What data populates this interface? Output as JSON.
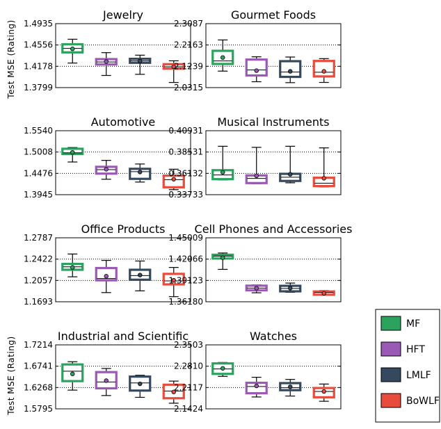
{
  "figure": {
    "ylabel": "Test MSE (Rating)"
  },
  "legend": [
    {
      "name": "MF",
      "color": "#2ca25f"
    },
    {
      "name": "HFT",
      "color": "#9b59b6"
    },
    {
      "name": "LMLF",
      "color": "#34495e"
    },
    {
      "name": "BoWLF",
      "color": "#e74c3c"
    }
  ],
  "chart_data": [
    {
      "type": "box",
      "title": "Jewelry",
      "ylim": [
        1.3799,
        1.4935
      ],
      "yticks": [
        "1.4935",
        "1.4556",
        "1.4178",
        "1.3799"
      ],
      "boxes": [
        {
          "name": "MF",
          "whisker_low": 1.4235,
          "q1": 1.4425,
          "median": 1.4495,
          "q3": 1.4568,
          "whisker_high": 1.4658,
          "mean": 1.4488
        },
        {
          "name": "HFT",
          "whisker_low": 1.4015,
          "q1": 1.421,
          "median": 1.4255,
          "q3": 1.4305,
          "whisker_high": 1.442,
          "mean": 1.4262
        },
        {
          "name": "LMLF",
          "whisker_low": 1.4035,
          "q1": 1.424,
          "median": 1.4275,
          "q3": 1.431,
          "whisker_high": 1.4375,
          "mean": 1.427
        },
        {
          "name": "BoWLF",
          "whisker_low": 1.389,
          "q1": 1.4135,
          "median": 1.417,
          "q3": 1.4215,
          "whisker_high": 1.4275,
          "mean": 1.417
        }
      ]
    },
    {
      "type": "box",
      "title": "Gourmet Foods",
      "ylim": [
        2.0315,
        2.3087
      ],
      "yticks": [
        "2.3087",
        "2.2163",
        "2.1239",
        "2.0315"
      ],
      "boxes": [
        {
          "name": "MF",
          "whisker_low": 2.103,
          "q1": 2.134,
          "median": 2.147,
          "q3": 2.191,
          "whisker_high": 2.238,
          "mean": 2.162
        },
        {
          "name": "HFT",
          "whisker_low": 2.057,
          "q1": 2.084,
          "median": 2.108,
          "q3": 2.153,
          "whisker_high": 2.165,
          "mean": 2.105
        },
        {
          "name": "LMLF",
          "whisker_low": 2.053,
          "q1": 2.078,
          "median": 2.099,
          "q3": 2.146,
          "whisker_high": 2.164,
          "mean": 2.102
        },
        {
          "name": "BoWLF",
          "whisker_low": 2.054,
          "q1": 2.08,
          "median": 2.098,
          "q3": 2.147,
          "whisker_high": 2.157,
          "mean": 2.102
        }
      ]
    },
    {
      "type": "box",
      "title": "Automotive",
      "ylim": [
        1.3945,
        1.554
      ],
      "yticks": [
        "1.5540",
        "1.5008",
        "1.4476",
        "1.3945"
      ],
      "boxes": [
        {
          "name": "MF",
          "whisker_low": 1.476,
          "q1": 1.496,
          "median": 1.499,
          "q3": 1.509,
          "whisker_high": 1.512,
          "mean": 1.5
        },
        {
          "name": "HFT",
          "whisker_low": 1.433,
          "q1": 1.447,
          "median": 1.457,
          "q3": 1.464,
          "whisker_high": 1.48,
          "mean": 1.458
        },
        {
          "name": "LMLF",
          "whisker_low": 1.426,
          "q1": 1.434,
          "median": 1.452,
          "q3": 1.459,
          "whisker_high": 1.471,
          "mean": 1.451
        },
        {
          "name": "BoWLF",
          "whisker_low": 1.407,
          "q1": 1.413,
          "median": 1.432,
          "q3": 1.442,
          "whisker_high": 1.458,
          "mean": 1.433
        }
      ]
    },
    {
      "type": "box",
      "title": "Musical Instruments",
      "ylim": [
        0.33733,
        0.40931
      ],
      "yticks": [
        "0.40931",
        "0.38531",
        "0.36132",
        "0.33733"
      ],
      "boxes": [
        {
          "name": "MF",
          "whisker_low": 0.354,
          "q1": 0.3548,
          "median": 0.3595,
          "q3": 0.3649,
          "whisker_high": 0.3918,
          "mean": 0.3626
        },
        {
          "name": "HFT",
          "whisker_low": 0.3497,
          "q1": 0.3504,
          "median": 0.3556,
          "q3": 0.359,
          "whisker_high": 0.3906,
          "mean": 0.3586
        },
        {
          "name": "LMLF",
          "whisker_low": 0.3507,
          "q1": 0.3528,
          "median": 0.357,
          "q3": 0.3608,
          "whisker_high": 0.3918,
          "mean": 0.3603
        },
        {
          "name": "BoWLF",
          "whisker_low": 0.3461,
          "q1": 0.347,
          "median": 0.3502,
          "q3": 0.3564,
          "whisker_high": 0.39,
          "mean": 0.3558
        }
      ]
    },
    {
      "type": "box",
      "title": "Office Products",
      "ylim": [
        1.1693,
        1.2787
      ],
      "yticks": [
        "1.2787",
        "1.2422",
        "1.2057",
        "1.1693"
      ],
      "boxes": [
        {
          "name": "MF",
          "whisker_low": 1.212,
          "q1": 1.224,
          "median": 1.229,
          "q3": 1.234,
          "whisker_high": 1.251,
          "mean": 1.228
        },
        {
          "name": "HFT",
          "whisker_low": 1.185,
          "q1": 1.206,
          "median": 1.209,
          "q3": 1.227,
          "whisker_high": 1.24,
          "mean": 1.213
        },
        {
          "name": "LMLF",
          "whisker_low": 1.188,
          "q1": 1.207,
          "median": 1.214,
          "q3": 1.224,
          "whisker_high": 1.239,
          "mean": 1.215
        },
        {
          "name": "BoWLF",
          "whisker_low": 1.178,
          "q1": 1.199,
          "median": 1.205,
          "q3": 1.217,
          "whisker_high": 1.228,
          "mean": 1.206
        }
      ]
    },
    {
      "type": "box",
      "title": "Cell Phones and Accessories",
      "ylim": [
        1.3618,
        1.45009
      ],
      "yticks": [
        "1.45009",
        "1.42066",
        "1.39123",
        "1.36180"
      ],
      "boxes": [
        {
          "name": "MF",
          "whisker_low": 1.4065,
          "q1": 1.4215,
          "median": 1.4248,
          "q3": 1.4267,
          "whisker_high": 1.4291,
          "mean": 1.4226
        },
        {
          "name": "HFT",
          "whisker_low": 1.3742,
          "q1": 1.3776,
          "median": 1.3806,
          "q3": 1.384,
          "whisker_high": 1.385,
          "mean": 1.3805
        },
        {
          "name": "LMLF",
          "whisker_low": 1.3749,
          "q1": 1.3762,
          "median": 1.3802,
          "q3": 1.3838,
          "whisker_high": 1.3876,
          "mean": 1.3806
        },
        {
          "name": "BoWLF",
          "whisker_low": 1.3708,
          "q1": 1.3715,
          "median": 1.3745,
          "q3": 1.376,
          "whisker_high": 1.3772,
          "mean": 1.3735
        }
      ]
    },
    {
      "type": "box",
      "title": "Industrial and Scientific",
      "ylim": [
        1.5795,
        1.7214
      ],
      "yticks": [
        "1.7214",
        "1.6741",
        "1.6268",
        "1.5795"
      ],
      "boxes": [
        {
          "name": "MF",
          "whisker_low": 1.621,
          "q1": 1.641,
          "median": 1.663,
          "q3": 1.678,
          "whisker_high": 1.684,
          "mean": 1.657
        },
        {
          "name": "HFT",
          "whisker_low": 1.609,
          "q1": 1.625,
          "median": 1.639,
          "q3": 1.661,
          "whisker_high": 1.669,
          "mean": 1.642
        },
        {
          "name": "LMLF",
          "whisker_low": 1.605,
          "q1": 1.62,
          "median": 1.637,
          "q3": 1.651,
          "whisker_high": 1.654,
          "mean": 1.635
        },
        {
          "name": "BoWLF",
          "whisker_low": 1.592,
          "q1": 1.603,
          "median": 1.619,
          "q3": 1.633,
          "whisker_high": 1.641,
          "mean": 1.617
        }
      ]
    },
    {
      "type": "box",
      "title": "Watches",
      "ylim": [
        2.1424,
        2.3503
      ],
      "yticks": [
        "2.3503",
        "2.2810",
        "2.2117",
        "2.1424"
      ],
      "boxes": [
        {
          "name": "MF",
          "whisker_low": 2.248,
          "q1": 2.256,
          "median": 2.272,
          "q3": 2.29,
          "whisker_high": 2.293,
          "mean": 2.274
        },
        {
          "name": "HFT",
          "whisker_low": 2.181,
          "q1": 2.193,
          "median": 2.215,
          "q3": 2.227,
          "whisker_high": 2.245,
          "mean": 2.217
        },
        {
          "name": "LMLF",
          "whisker_low": 2.184,
          "q1": 2.203,
          "median": 2.211,
          "q3": 2.226,
          "whisker_high": 2.238,
          "mean": 2.214
        },
        {
          "name": "BoWLF",
          "whisker_low": 2.167,
          "q1": 2.18,
          "median": 2.199,
          "q3": 2.21,
          "whisker_high": 2.223,
          "mean": 2.199
        }
      ]
    }
  ]
}
